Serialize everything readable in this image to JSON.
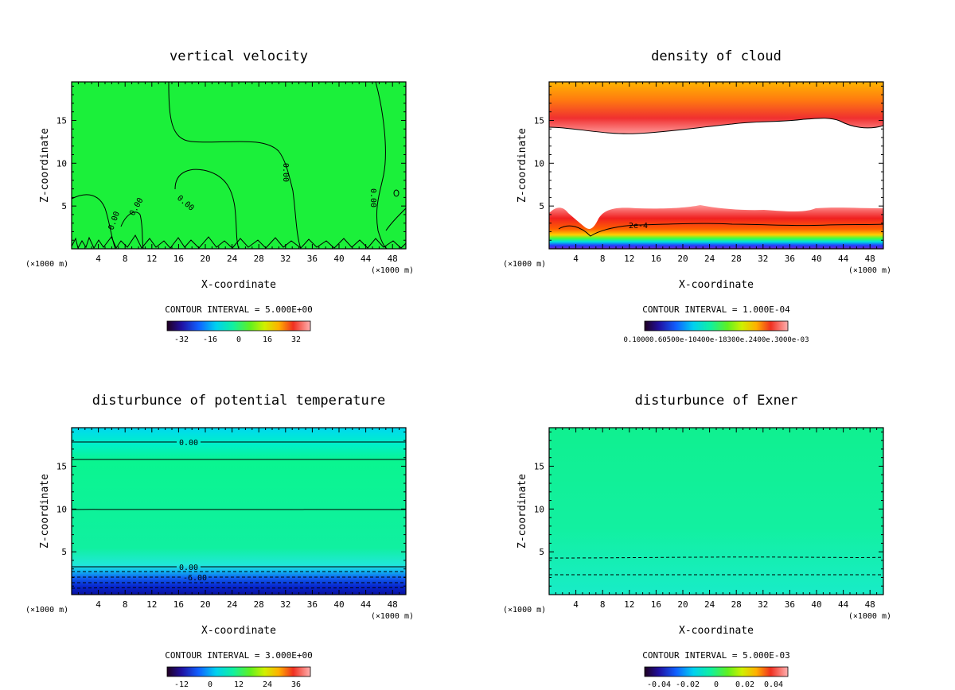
{
  "common": {
    "xlabel": "X-coordinate",
    "ylabel": "Z-coordinate",
    "unit_label": "(×1000 m)",
    "x_ticks": [
      4,
      8,
      12,
      16,
      20,
      24,
      28,
      32,
      36,
      40,
      44,
      48
    ],
    "y_ticks": [
      5,
      10,
      15
    ],
    "xlim": [
      0,
      50
    ],
    "ylim": [
      0,
      19.5
    ]
  },
  "panels": [
    {
      "id": "vertical-velocity",
      "title": "vertical velocity",
      "contour_interval": "CONTOUR INTERVAL = 5.000E+00",
      "colorbar_ticks": [
        "-32",
        "-16",
        "0",
        "16",
        "32"
      ],
      "colorbar_range": [
        -40,
        40
      ],
      "background": "#1bf03a",
      "contour_labels": [
        "0.00",
        "0.00",
        "0.00",
        "0.00",
        "0.00"
      ]
    },
    {
      "id": "density-of-cloud",
      "title": "density of cloud",
      "contour_interval": "CONTOUR INTERVAL = 1.000E-04",
      "colorbar_ticks_text": "0.10000.60500e-10400e-18300e.2400e.3000e-03",
      "background": "#ffffff",
      "contour_labels": [
        "2e-4"
      ]
    },
    {
      "id": "disturbance-potential-temperature",
      "title": "disturbunce of potential temperature",
      "contour_interval": "CONTOUR INTERVAL = 3.000E+00",
      "colorbar_ticks": [
        "-12",
        "0",
        "12",
        "24",
        "36"
      ],
      "colorbar_range": [
        -18,
        42
      ],
      "background": "#0df58a",
      "contour_labels": [
        "0.00",
        "0.00",
        "-6.00"
      ]
    },
    {
      "id": "disturbance-of-exner",
      "title": "disturbunce of Exner",
      "contour_interval": "CONTOUR INTERVAL = 5.000E-03",
      "colorbar_ticks": [
        "-0.04",
        "-0.02",
        "0",
        "0.02",
        "0.04"
      ],
      "colorbar_range": [
        -0.05,
        0.05
      ],
      "background": "#0ff09a",
      "contour_labels": []
    }
  ],
  "chart_data": [
    {
      "type": "heatmap",
      "title": "vertical velocity",
      "xlabel": "X-coordinate",
      "ylabel": "Z-coordinate",
      "xlim": [
        0,
        50
      ],
      "ylim": [
        0,
        19.5
      ],
      "colorbar_ticks": [
        -32,
        -16,
        0,
        16,
        32
      ],
      "contour_interval": 5.0,
      "contour_labels": [
        "0.00",
        "0.00",
        "0.00",
        "0.00",
        "0.00"
      ]
    },
    {
      "type": "heatmap",
      "title": "density of cloud",
      "xlabel": "X-coordinate",
      "ylabel": "Z-coordinate",
      "xlim": [
        0,
        50
      ],
      "ylim": [
        0,
        19.5
      ],
      "contour_interval": 0.0001,
      "contour_labels": [
        "2e-4"
      ]
    },
    {
      "type": "heatmap",
      "title": "disturbunce of potential temperature",
      "xlabel": "X-coordinate",
      "ylabel": "Z-coordinate",
      "xlim": [
        0,
        50
      ],
      "ylim": [
        0,
        19.5
      ],
      "colorbar_ticks": [
        -12,
        0,
        12,
        24,
        36
      ],
      "contour_interval": 3.0,
      "contour_labels": [
        "0.00",
        "0.00",
        "-6.00"
      ]
    },
    {
      "type": "heatmap",
      "title": "disturbunce of Exner",
      "xlabel": "X-coordinate",
      "ylabel": "Z-coordinate",
      "xlim": [
        0,
        50
      ],
      "ylim": [
        0,
        19.5
      ],
      "colorbar_ticks": [
        -0.04,
        -0.02,
        0,
        0.02,
        0.04
      ],
      "contour_interval": 0.005
    }
  ]
}
